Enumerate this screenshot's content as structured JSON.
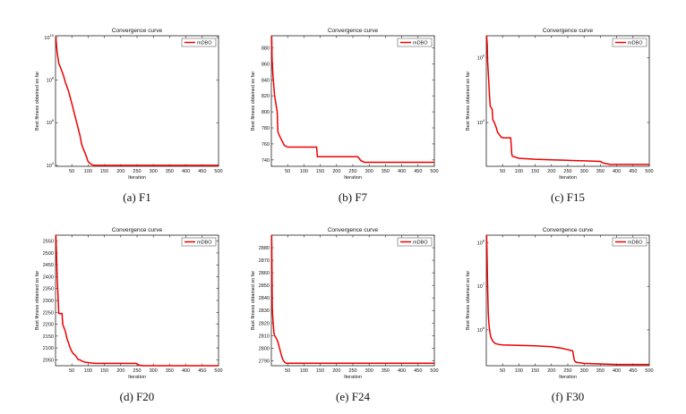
{
  "chart_data": [
    {
      "type": "line",
      "title": "Convergence curve",
      "xlabel": "Iteration",
      "ylabel": "Best fitness obtained so far",
      "caption": "(a)  F1",
      "yscale": "log",
      "xlim": [
        0,
        500
      ],
      "ylim": [
        9000,
        12000000000
      ],
      "x_ticks": [
        "50",
        "100",
        "150",
        "200",
        "250",
        "300",
        "350",
        "400",
        "450",
        "500"
      ],
      "y_ticks": [
        {
          "v": 10000,
          "b": "10",
          "e": "4"
        },
        {
          "v": 1000000,
          "b": "10",
          "e": "6"
        },
        {
          "v": 100000000,
          "b": "10",
          "e": "8"
        },
        {
          "v": 10000000000,
          "b": "10",
          "e": "10"
        }
      ],
      "legend": "mDBO",
      "legend_position": "top-right",
      "series": [
        {
          "name": "mDBO",
          "color": "#ee0000",
          "x": [
            1,
            5,
            10,
            15,
            20,
            25,
            30,
            40,
            50,
            55,
            60,
            65,
            70,
            75,
            80,
            85,
            90,
            95,
            100,
            110,
            118,
            500
          ],
          "y": [
            10000000000,
            2000000000,
            600000000,
            400000000,
            250000000,
            150000000,
            80000000,
            30000000,
            8000000,
            4000000,
            2000000,
            1000000,
            500000,
            250000,
            100000,
            60000,
            40000,
            25000,
            15000,
            11000,
            10000,
            10000
          ]
        }
      ]
    },
    {
      "type": "line",
      "title": "Convergence curve",
      "xlabel": "Iteration",
      "ylabel": "Best fitness obtained so far",
      "caption": "(b)  F7",
      "yscale": "linear",
      "xlim": [
        0,
        500
      ],
      "ylim": [
        732,
        895
      ],
      "x_ticks": [
        "50",
        "100",
        "150",
        "200",
        "250",
        "300",
        "350",
        "400",
        "450",
        "500"
      ],
      "y_ticks": [
        {
          "v": 740,
          "t": "740"
        },
        {
          "v": 760,
          "t": "760"
        },
        {
          "v": 780,
          "t": "780"
        },
        {
          "v": 800,
          "t": "800"
        },
        {
          "v": 820,
          "t": "820"
        },
        {
          "v": 840,
          "t": "840"
        },
        {
          "v": 860,
          "t": "860"
        },
        {
          "v": 880,
          "t": "880"
        }
      ],
      "legend": "mDBO",
      "legend_position": "top-right",
      "series": [
        {
          "name": "mDBO",
          "color": "#ee0000",
          "x": [
            1,
            2,
            3,
            5,
            7,
            10,
            14,
            18,
            20,
            25,
            30,
            35,
            40,
            50,
            80,
            95,
            110,
            139,
            141,
            200,
            265,
            275,
            285,
            500
          ],
          "y": [
            895,
            870,
            860,
            845,
            835,
            820,
            810,
            800,
            775,
            770,
            766,
            762,
            758,
            756,
            756,
            756,
            756,
            756,
            744,
            744,
            744,
            739,
            737,
            737
          ]
        }
      ]
    },
    {
      "type": "line",
      "title": "Convergence curve",
      "xlabel": "Iteration",
      "ylabel": "Best fitness obtained so far",
      "caption": "(c)  F15",
      "yscale": "log",
      "xlim": [
        0,
        500
      ],
      "ylim": [
        2100,
        220000
      ],
      "x_ticks": [
        "50",
        "100",
        "150",
        "200",
        "250",
        "300",
        "350",
        "400",
        "450",
        "500"
      ],
      "y_ticks": [
        {
          "v": 10000,
          "b": "10",
          "e": "4"
        },
        {
          "v": 100000,
          "b": "10",
          "e": "5"
        }
      ],
      "legend": "mDBO",
      "legend_position": "top-right",
      "series": [
        {
          "name": "mDBO",
          "color": "#ee0000",
          "x": [
            1,
            3,
            4,
            8,
            10,
            12,
            15,
            18,
            20,
            25,
            28,
            30,
            35,
            40,
            45,
            50,
            55,
            60,
            75,
            78,
            80,
            100,
            150,
            200,
            250,
            300,
            350,
            360,
            380,
            500
          ],
          "y": [
            220000,
            160000,
            90000,
            40000,
            25000,
            18000,
            17000,
            16000,
            11000,
            10000,
            9000,
            8500,
            7000,
            6500,
            6000,
            5800,
            5800,
            5800,
            5800,
            3300,
            3000,
            2800,
            2700,
            2650,
            2600,
            2550,
            2500,
            2350,
            2250,
            2250
          ]
        }
      ]
    },
    {
      "type": "line",
      "title": "Convergence curve",
      "xlabel": "Iteration",
      "ylabel": "Best fitness obtained so far",
      "caption": "(d)  F20",
      "yscale": "linear",
      "xlim": [
        0,
        500
      ],
      "ylim": [
        2025,
        2575
      ],
      "x_ticks": [
        "50",
        "100",
        "150",
        "200",
        "250",
        "300",
        "350",
        "400",
        "450",
        "500"
      ],
      "y_ticks": [
        {
          "v": 2050,
          "t": "2050"
        },
        {
          "v": 2100,
          "t": "2100"
        },
        {
          "v": 2150,
          "t": "2150"
        },
        {
          "v": 2200,
          "t": "2200"
        },
        {
          "v": 2250,
          "t": "2250"
        },
        {
          "v": 2300,
          "t": "2300"
        },
        {
          "v": 2350,
          "t": "2350"
        },
        {
          "v": 2400,
          "t": "2400"
        },
        {
          "v": 2450,
          "t": "2450"
        },
        {
          "v": 2500,
          "t": "2500"
        },
        {
          "v": 2550,
          "t": "2550"
        }
      ],
      "legend": "mDBO",
      "legend_position": "top-right",
      "series": [
        {
          "name": "mDBO",
          "color": "#ee0000",
          "x": [
            1,
            3,
            5,
            10,
            20,
            22,
            30,
            35,
            40,
            45,
            50,
            55,
            60,
            65,
            70,
            75,
            80,
            90,
            100,
            120,
            200,
            248,
            255,
            270,
            300,
            500
          ],
          "y": [
            2575,
            2500,
            2400,
            2245,
            2245,
            2200,
            2170,
            2140,
            2120,
            2100,
            2085,
            2075,
            2070,
            2060,
            2050,
            2050,
            2045,
            2040,
            2038,
            2035,
            2035,
            2035,
            2028,
            2025,
            2025,
            2025
          ]
        }
      ]
    },
    {
      "type": "line",
      "title": "Convergence curve",
      "xlabel": "Iteration",
      "ylabel": "Best fitness obtained so far",
      "caption": "(e)  F24",
      "yscale": "linear",
      "xlim": [
        0,
        500
      ],
      "ylim": [
        2786,
        2890
      ],
      "x_ticks": [
        "50",
        "100",
        "150",
        "200",
        "250",
        "300",
        "350",
        "400",
        "450",
        "500"
      ],
      "y_ticks": [
        {
          "v": 2790,
          "t": "2790"
        },
        {
          "v": 2800,
          "t": "2800"
        },
        {
          "v": 2810,
          "t": "2810"
        },
        {
          "v": 2820,
          "t": "2820"
        },
        {
          "v": 2830,
          "t": "2830"
        },
        {
          "v": 2840,
          "t": "2840"
        },
        {
          "v": 2850,
          "t": "2850"
        },
        {
          "v": 2860,
          "t": "2860"
        },
        {
          "v": 2870,
          "t": "2870"
        },
        {
          "v": 2880,
          "t": "2880"
        }
      ],
      "legend": "mDBO",
      "legend_position": "top-right",
      "series": [
        {
          "name": "mDBO",
          "color": "#ee0000",
          "x": [
            1,
            2,
            3,
            5,
            8,
            10,
            15,
            20,
            25,
            30,
            35,
            40,
            45,
            500
          ],
          "y": [
            2890,
            2860,
            2830,
            2822,
            2812,
            2810,
            2808,
            2805,
            2800,
            2795,
            2791,
            2789,
            2788,
            2788
          ]
        }
      ]
    },
    {
      "type": "line",
      "title": "Convergence curve",
      "xlabel": "Iteration",
      "ylabel": "Best fitness obtained so far",
      "caption": "(f)  F30",
      "yscale": "log",
      "xlim": [
        0,
        500
      ],
      "ylim": [
        150000,
        150000000
      ],
      "x_ticks": [
        "50",
        "100",
        "150",
        "200",
        "250",
        "300",
        "350",
        "400",
        "450",
        "500"
      ],
      "y_ticks": [
        {
          "v": 1000000,
          "b": "10",
          "e": "6"
        },
        {
          "v": 10000000,
          "b": "10",
          "e": "7"
        },
        {
          "v": 100000000,
          "b": "10",
          "e": "8"
        }
      ],
      "legend": "mDBO",
      "legend_position": "top-right",
      "series": [
        {
          "name": "mDBO",
          "color": "#ee0000",
          "x": [
            1,
            2,
            3,
            4,
            5,
            6,
            8,
            10,
            12,
            15,
            20,
            25,
            30,
            40,
            50,
            100,
            150,
            200,
            230,
            265,
            270,
            275,
            300,
            350,
            400,
            500
          ],
          "y": [
            150000000,
            70000000,
            30000000,
            10000000,
            5000000,
            2500000,
            1400000,
            1000000,
            800000,
            650000,
            550000,
            500000,
            480000,
            460000,
            450000,
            440000,
            430000,
            410000,
            380000,
            330000,
            200000,
            180000,
            170000,
            165000,
            160000,
            160000
          ]
        }
      ]
    }
  ]
}
